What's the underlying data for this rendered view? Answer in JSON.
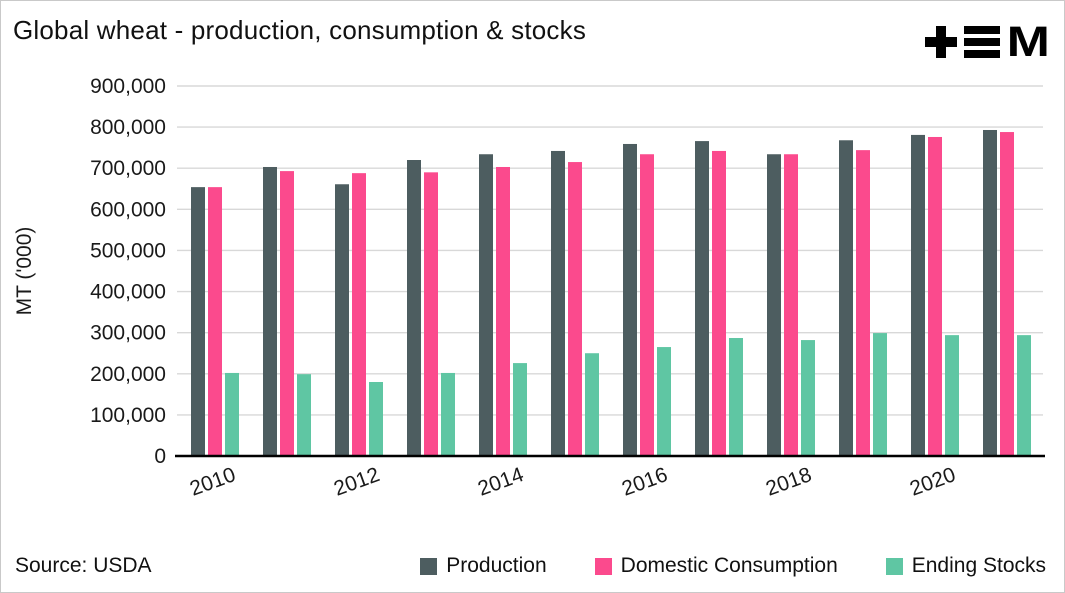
{
  "header": {
    "title": "Global wheat - production, consumption & stocks",
    "logo_name": "plus-bars-M brand logo"
  },
  "source": {
    "label": "Source: USDA"
  },
  "chart_data": {
    "type": "bar",
    "title": "Global wheat - production, consumption & stocks",
    "xlabel": "",
    "ylabel": "MT ('000)",
    "ylim": [
      0,
      900000
    ],
    "ytick_step": 100000,
    "grid": true,
    "legend_position": "bottom",
    "categories": [
      2010,
      2011,
      2012,
      2013,
      2014,
      2015,
      2016,
      2017,
      2018,
      2019,
      2020,
      2021
    ],
    "x_tick_labels": [
      "2010",
      "2012",
      "2014",
      "2016",
      "2018",
      "2020"
    ],
    "series": [
      {
        "name": "Production",
        "color": "#4d5d60",
        "values": [
          654000,
          703000,
          661000,
          720000,
          734000,
          742000,
          759000,
          766000,
          734000,
          768000,
          781000,
          793000
        ]
      },
      {
        "name": "Domestic Consumption",
        "color": "#fb4a8d",
        "values": [
          654000,
          693000,
          688000,
          690000,
          703000,
          715000,
          734000,
          742000,
          734000,
          744000,
          776000,
          788000
        ]
      },
      {
        "name": "Ending Stocks",
        "color": "#5fc6a3",
        "values": [
          202000,
          199000,
          180000,
          202000,
          226000,
          250000,
          265000,
          287000,
          282000,
          299000,
          294000,
          294000
        ]
      }
    ],
    "axis_color": "#000000",
    "gridline_color": "#d8d8d8",
    "tick_label_color": "#1a1a1a"
  }
}
